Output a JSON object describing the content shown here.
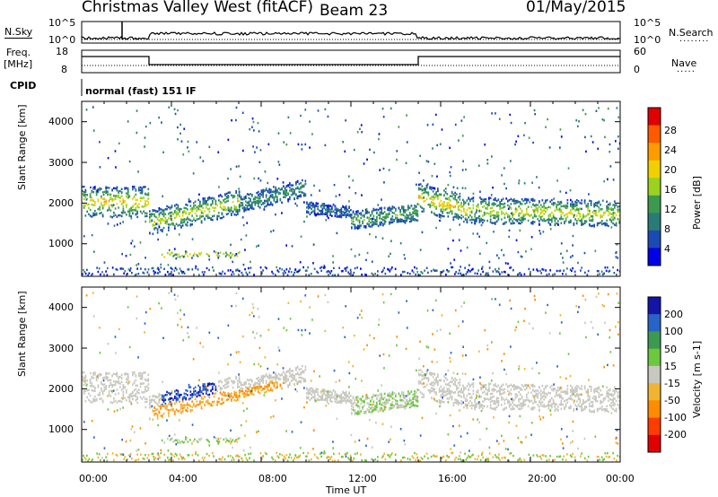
{
  "header": {
    "title": "Christmas Valley West (fitACF)",
    "beam": "Beam 23",
    "date": "01/May/2015"
  },
  "status_panels": {
    "nsky_label": "N.Sky",
    "nsky_ticks": [
      "10^5",
      "10^0"
    ],
    "nsearch_label": "N.Search",
    "nsearch_ticks": [
      "10^5",
      "10^0"
    ],
    "freq_label_1": "Freq.",
    "freq_label_2": "[MHz]",
    "freq_ticks": [
      "18",
      "8"
    ],
    "nave_label": "Nave",
    "nave_ticks": [
      "60",
      "0"
    ],
    "cpid_label": "CPID",
    "cpid_text": "normal (fast) 151 IF"
  },
  "chart_data": [
    {
      "type": "heatmap",
      "name": "power",
      "ylabel": "Slant Range [km]",
      "yticks": [
        "4000",
        "3000",
        "2000",
        "1000"
      ],
      "ylim": [
        200,
        4500
      ],
      "colorbar_label": "Power [dB]",
      "colorbar_ticks": [
        "28",
        "24",
        "20",
        "16",
        "12",
        "8",
        "4"
      ],
      "colorbar_colors": [
        "#e00000",
        "#ff5a00",
        "#ff9b00",
        "#f0d000",
        "#9ad21e",
        "#3c9a50",
        "#2a7a78",
        "#1a4ab4",
        "#0000e6"
      ]
    },
    {
      "type": "heatmap",
      "name": "velocity",
      "ylabel": "Slant Range [km]",
      "yticks": [
        "4000",
        "3000",
        "2000",
        "1000"
      ],
      "ylim": [
        200,
        4500
      ],
      "colorbar_label": "Velocity [m s-1]",
      "colorbar_ticks": [
        "200",
        "100",
        "50",
        "15",
        "-15",
        "-50",
        "-100",
        "-200"
      ],
      "colorbar_colors": [
        "#1414a8",
        "#2864c8",
        "#3c9a50",
        "#6cc83c",
        "#c8c8c0",
        "#f0b432",
        "#ff8c00",
        "#ff3c00",
        "#e00000"
      ]
    }
  ],
  "xaxis": {
    "label": "Time UT",
    "ticks": [
      "00:00",
      "04:00",
      "08:00",
      "12:00",
      "16:00",
      "20:00",
      "00:00"
    ]
  }
}
